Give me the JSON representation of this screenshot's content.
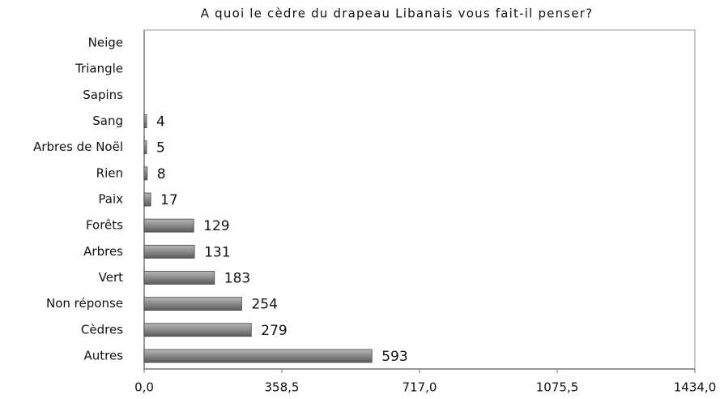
{
  "chart_data": {
    "type": "hbar",
    "title": "A quoi le cèdre du drapeau Libanais vous fait-il penser?",
    "categories": [
      "Neige",
      "Triangle",
      "Sapins",
      "Sang",
      "Arbres de Noël",
      "Rien",
      "Paix",
      "Forêts",
      "Arbres",
      "Vert",
      "Non réponse",
      "Cèdres",
      "Autres"
    ],
    "values": [
      null,
      null,
      null,
      4,
      5,
      8,
      17,
      129,
      131,
      183,
      254,
      279,
      593
    ],
    "color": "#8a8a8a",
    "xlim": [
      0,
      1434
    ],
    "xticks": [
      {
        "value": 0,
        "label": "0,0"
      },
      {
        "value": 358.5,
        "label": "358,5"
      },
      {
        "value": 717,
        "label": "717,0"
      },
      {
        "value": 1075.5,
        "label": "1075,5"
      },
      {
        "value": 1434,
        "label": "1434,0"
      }
    ]
  }
}
